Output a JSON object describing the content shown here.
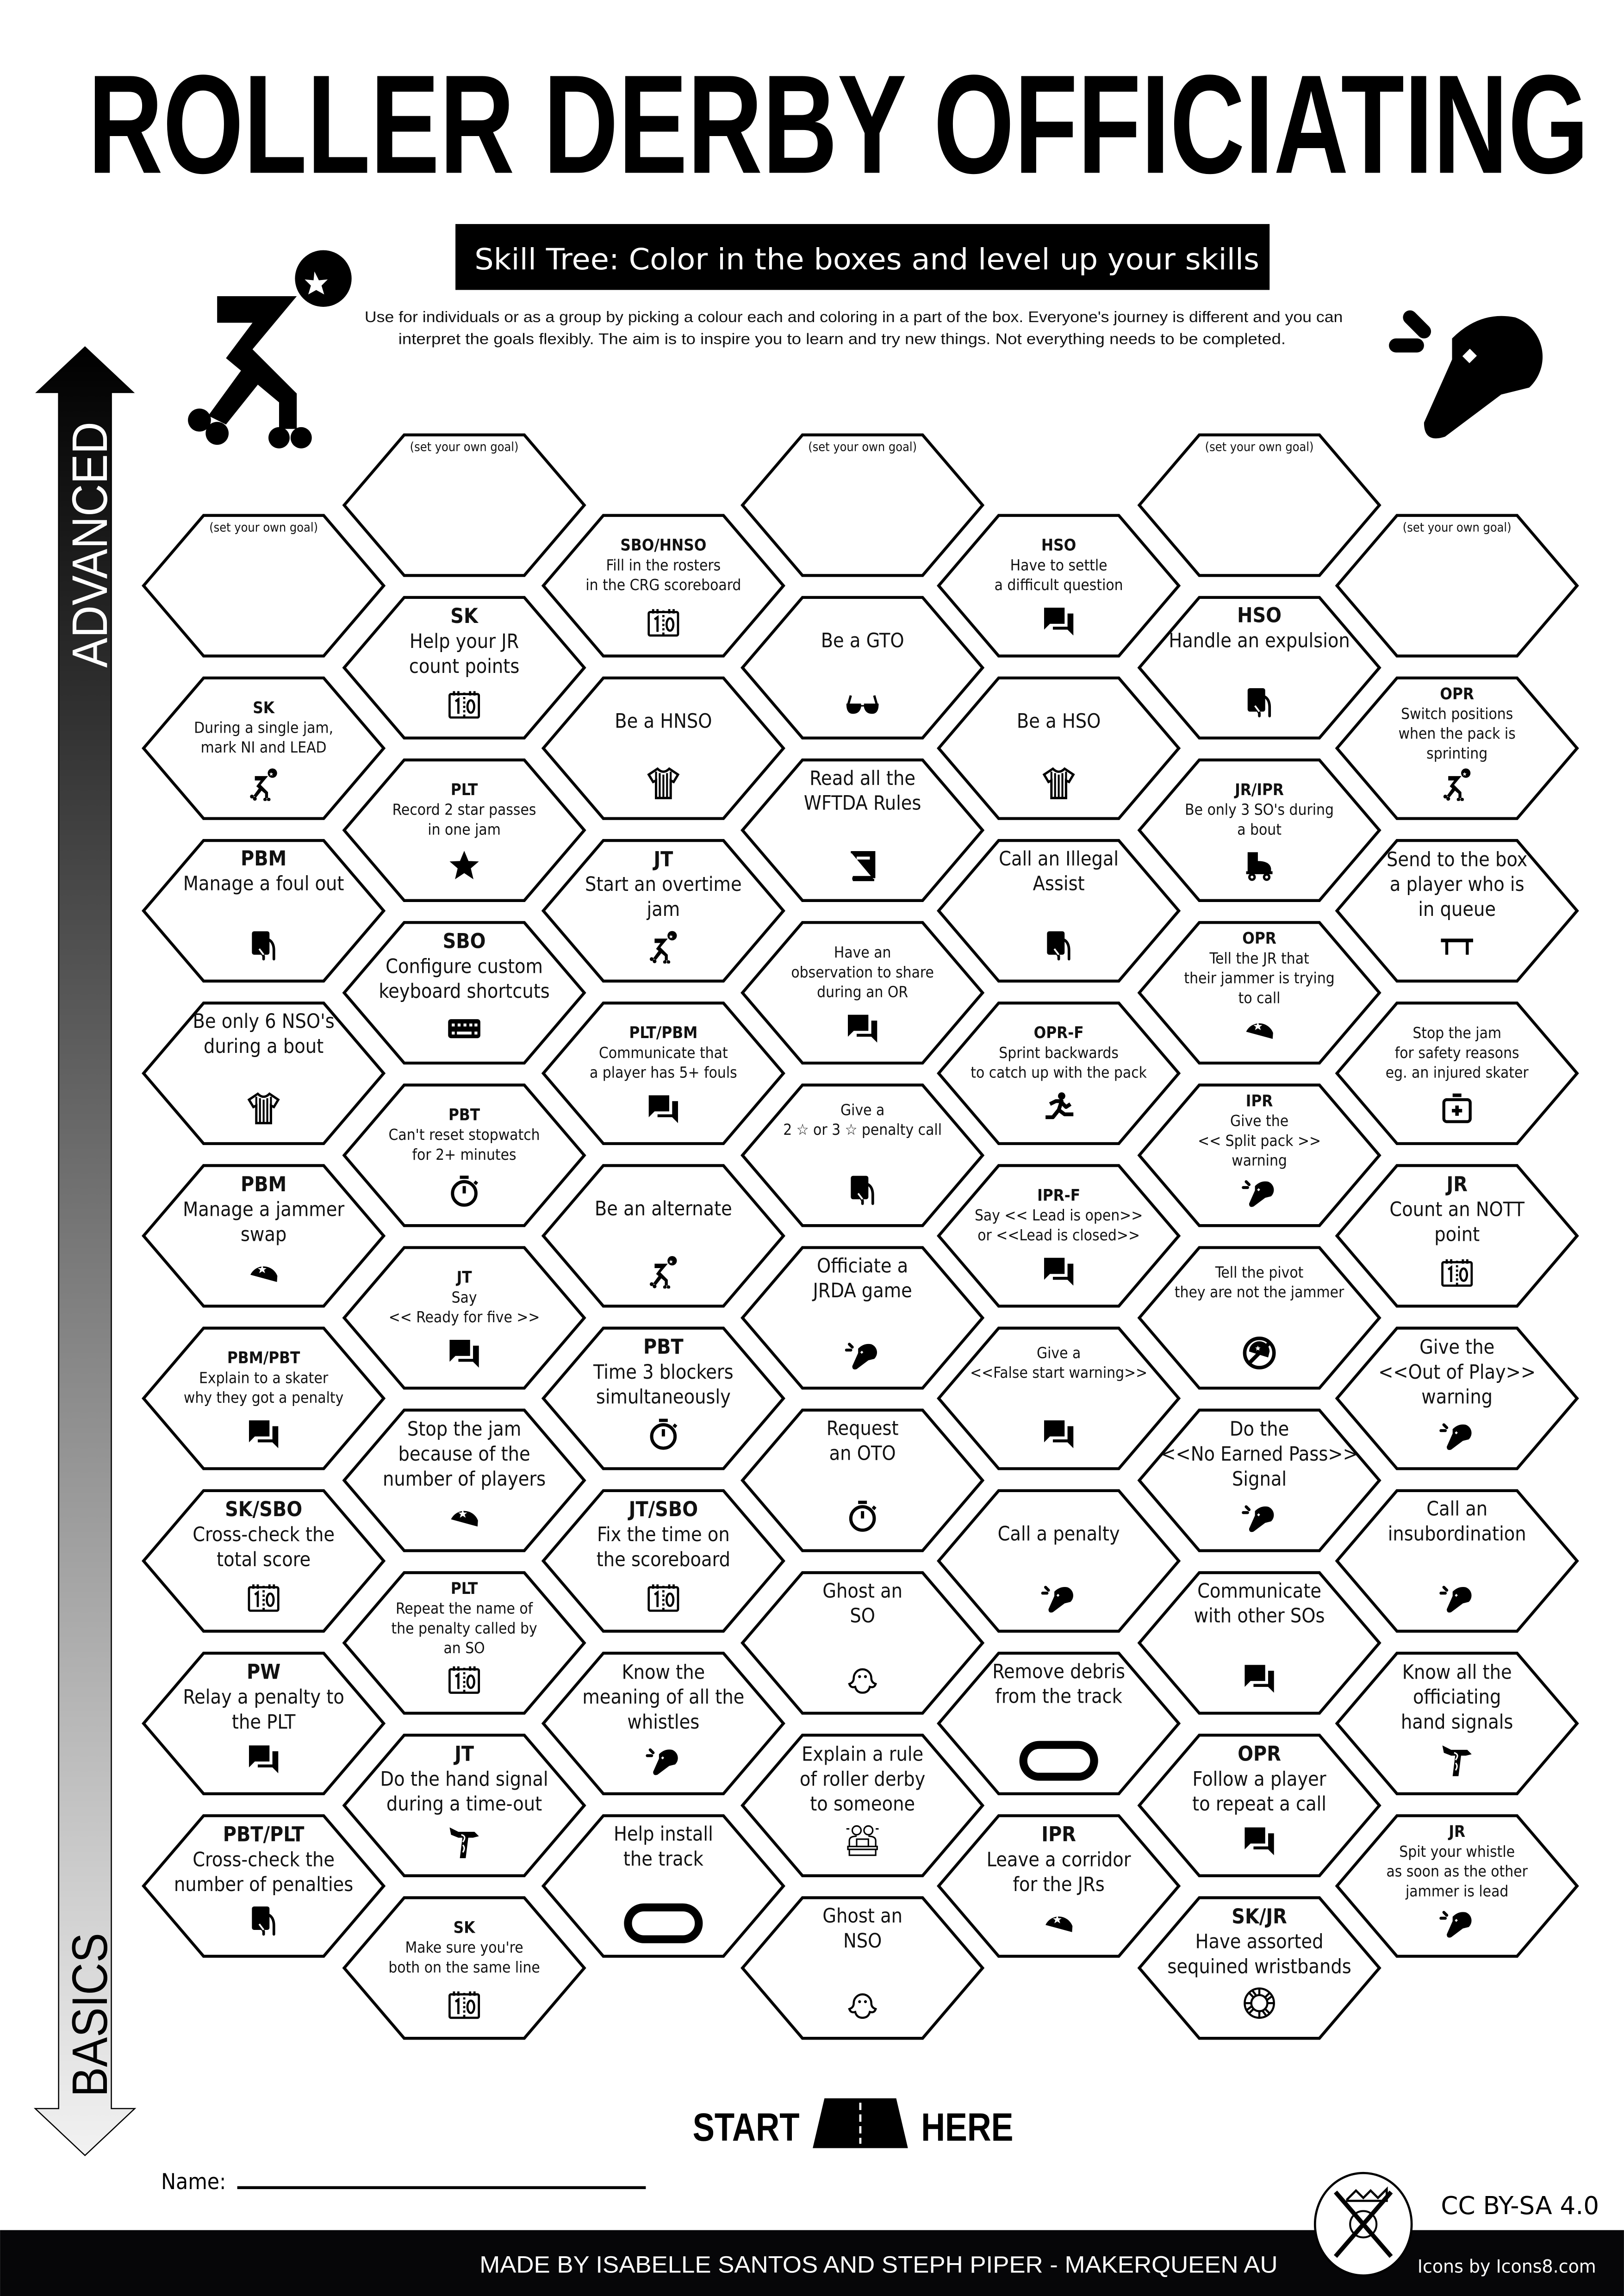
{
  "header": {
    "title": "ROLLER DERBY OFFICIATING",
    "subtitle": "Skill Tree:  Color in the boxes and level up your skills",
    "description": [
      "Use for individuals or as a group by picking a colour each and coloring in a part of the box.  Everyone's journey is different and you can",
      "interpret the goals flexibly.  The aim is to inspire you to learn and try new things. Not everything needs to be completed."
    ]
  },
  "axis": {
    "top_label": "ADVANCED",
    "bottom_label": "BASICS"
  },
  "goal_placeholder": "(set your own goal)",
  "columns": [
    {
      "hexes": [
        {
          "goal": true
        },
        {
          "code": "SK",
          "lines": [
            "During a single jam,",
            "mark NI and LEAD"
          ],
          "icon": "skater"
        },
        {
          "code": "PBM",
          "lines": [
            "Manage a foul out"
          ],
          "icon": "card"
        },
        {
          "code": "",
          "lines": [
            "Be only 6 NSO's",
            "during a bout"
          ],
          "icon": "jersey"
        },
        {
          "code": "PBM",
          "lines": [
            "Manage a jammer",
            "swap"
          ],
          "icon": "helmet"
        },
        {
          "code": "PBM/PBT",
          "lines": [
            "Explain to a skater",
            "why they got a penalty"
          ],
          "icon": "chat"
        },
        {
          "code": "SK/SBO",
          "lines": [
            "Cross-check the",
            "total score"
          ],
          "icon": "scoreboard"
        },
        {
          "code": "PW",
          "lines": [
            "Relay a penalty to",
            "the PLT"
          ],
          "icon": "chat"
        },
        {
          "code": "PBT/PLT",
          "lines": [
            "Cross-check the",
            "number of penalties"
          ],
          "icon": "card"
        }
      ]
    },
    {
      "hexes": [
        {
          "goal": true
        },
        {
          "code": "SK",
          "lines": [
            "Help your JR",
            "count points"
          ],
          "icon": "scoreboard"
        },
        {
          "code": "PLT",
          "lines": [
            "Record 2 star passes",
            "in one jam"
          ],
          "icon": "star"
        },
        {
          "code": "SBO",
          "lines": [
            "Configure custom",
            "keyboard shortcuts"
          ],
          "icon": "keyboard"
        },
        {
          "code": "PBT",
          "lines": [
            "Can't reset stopwatch",
            "for 2+ minutes"
          ],
          "icon": "stopwatch"
        },
        {
          "code": "JT",
          "lines": [
            "Say",
            "<< Ready for five >>"
          ],
          "icon": "chat"
        },
        {
          "code": "",
          "lines": [
            "Stop the jam",
            "because of the",
            "number of players"
          ],
          "icon": "helmet"
        },
        {
          "code": "PLT",
          "lines": [
            "Repeat the name of",
            "the penalty called by",
            "an SO"
          ],
          "icon": "scoreboard"
        },
        {
          "code": "JT",
          "lines": [
            "Do the hand signal",
            "during a time-out"
          ],
          "icon": "hand-signal"
        },
        {
          "code": "SK",
          "lines": [
            "Make sure you're",
            "both on the same line"
          ],
          "icon": "scoreboard"
        }
      ]
    },
    {
      "hexes": [
        {
          "code": "SBO/HNSO",
          "lines": [
            "Fill in the rosters",
            "in the CRG scoreboard"
          ],
          "icon": "scoreboard"
        },
        {
          "code": "",
          "lines": [
            "Be a HNSO"
          ],
          "icon": "jersey"
        },
        {
          "code": "JT",
          "lines": [
            "Start an overtime",
            "jam"
          ],
          "icon": "skater"
        },
        {
          "code": "PLT/PBM",
          "lines": [
            "Communicate that",
            "a player has 5+ fouls"
          ],
          "icon": "chat"
        },
        {
          "code": "",
          "lines": [
            "Be an alternate"
          ],
          "icon": "skater"
        },
        {
          "code": "PBT",
          "lines": [
            "Time 3 blockers",
            "simultaneously"
          ],
          "icon": "stopwatch"
        },
        {
          "code": "JT/SBO",
          "lines": [
            "Fix the time on",
            "the scoreboard"
          ],
          "icon": "scoreboard"
        },
        {
          "code": "",
          "lines": [
            "Know the",
            "meaning of all the",
            "whistles"
          ],
          "icon": "whistle"
        },
        {
          "code": "",
          "lines": [
            "Help install",
            "the track"
          ],
          "icon": "track"
        }
      ]
    },
    {
      "hexes": [
        {
          "goal": true
        },
        {
          "code": "",
          "lines": [
            "Be a GTO"
          ],
          "icon": "sunglasses"
        },
        {
          "code": "",
          "lines": [
            "Read all the",
            "WFTDA Rules"
          ],
          "icon": "book"
        },
        {
          "code": "",
          "lines": [
            "Have an",
            "observation to share",
            "during an OR"
          ],
          "icon": "chat"
        },
        {
          "code": "",
          "lines": [
            "Give a",
            "2 ☆ or 3 ☆ penalty call"
          ],
          "icon": "card"
        },
        {
          "code": "",
          "lines": [
            "Officiate a",
            "JRDA game"
          ],
          "icon": "whistle"
        },
        {
          "code": "",
          "lines": [
            "Request",
            "an OTO"
          ],
          "icon": "stopwatch"
        },
        {
          "code": "",
          "lines": [
            "Ghost an",
            "SO"
          ],
          "icon": "ghost"
        },
        {
          "code": "",
          "lines": [
            "Explain a rule",
            "of roller derby",
            "to someone"
          ],
          "icon": "presenters"
        },
        {
          "code": "",
          "lines": [
            "Ghost an",
            "NSO"
          ],
          "icon": "ghost"
        }
      ]
    },
    {
      "hexes": [
        {
          "code": "HSO",
          "lines": [
            "Have to settle",
            "a difficult question"
          ],
          "icon": "chat"
        },
        {
          "code": "",
          "lines": [
            "Be a HSO"
          ],
          "icon": "jersey"
        },
        {
          "code": "",
          "lines": [
            "Call an Illegal",
            "Assist"
          ],
          "icon": "card"
        },
        {
          "code": "OPR-F",
          "lines": [
            "Sprint backwards",
            "to catch up with the pack"
          ],
          "icon": "runner"
        },
        {
          "code": "IPR-F",
          "lines": [
            "Say << Lead is open>>",
            "or <<Lead is closed>>"
          ],
          "icon": "chat"
        },
        {
          "code": "",
          "lines": [
            "Give a",
            "<<False start warning>>"
          ],
          "icon": "chat"
        },
        {
          "code": "",
          "lines": [
            "Call a penalty"
          ],
          "icon": "whistle"
        },
        {
          "code": "",
          "lines": [
            "Remove debris",
            "from the track"
          ],
          "icon": "track"
        },
        {
          "code": "IPR",
          "lines": [
            "Leave a corridor",
            "for the JRs"
          ],
          "icon": "helmet"
        }
      ]
    },
    {
      "hexes": [
        {
          "goal": true
        },
        {
          "code": "HSO",
          "lines": [
            "Handle an expulsion"
          ],
          "icon": "card"
        },
        {
          "code": "JR/IPR",
          "lines": [
            "Be only 3 SO's during",
            "a bout"
          ],
          "icon": "roller-skate"
        },
        {
          "code": "OPR",
          "lines": [
            "Tell the JR that",
            "their jammer is trying",
            "to call"
          ],
          "icon": "helmet"
        },
        {
          "code": "IPR",
          "lines": [
            "Give the",
            "<< Split pack >>",
            "warning"
          ],
          "icon": "whistle"
        },
        {
          "code": "",
          "lines": [
            "Tell the pivot",
            "they are not the jammer"
          ],
          "icon": "no-jammer"
        },
        {
          "code": "",
          "lines": [
            "Do the",
            "<<No Earned Pass>>",
            "Signal"
          ],
          "icon": "whistle"
        },
        {
          "code": "",
          "lines": [
            "Communicate",
            "with other SOs"
          ],
          "icon": "chat"
        },
        {
          "code": "OPR",
          "lines": [
            "Follow a player",
            "to repeat a call"
          ],
          "icon": "chat"
        },
        {
          "code": "SK/JR",
          "lines": [
            "Have assorted",
            "sequined wristbands"
          ],
          "icon": "wristband"
        }
      ]
    },
    {
      "hexes": [
        {
          "goal": true
        },
        {
          "code": "OPR",
          "lines": [
            "Switch positions",
            "when the pack is",
            "sprinting"
          ],
          "icon": "skater"
        },
        {
          "code": "",
          "lines": [
            "Send to the box",
            "a player who is",
            "in queue"
          ],
          "icon": "bench"
        },
        {
          "code": "",
          "lines": [
            "Stop the jam",
            "for safety reasons",
            "eg. an injured skater"
          ],
          "icon": "first-aid"
        },
        {
          "code": "JR",
          "lines": [
            "Count an NOTT",
            "point"
          ],
          "icon": "scoreboard"
        },
        {
          "code": "",
          "lines": [
            "Give the",
            "<<Out of Play>>",
            "warning"
          ],
          "icon": "whistle"
        },
        {
          "code": "",
          "lines": [
            "Call an",
            "insubordination"
          ],
          "icon": "whistle"
        },
        {
          "code": "",
          "lines": [
            "Know all the",
            "officiating",
            "hand signals"
          ],
          "icon": "hand-signal"
        },
        {
          "code": "JR",
          "lines": [
            "Spit your whistle",
            "as soon as the other",
            "jammer is lead"
          ],
          "icon": "whistle"
        }
      ]
    }
  ],
  "start": {
    "left": "START",
    "right": "HERE"
  },
  "name_label": "Name:",
  "license": "CC BY-SA 4.0",
  "icons_credit": "Icons by Icons8.com",
  "footer": "MADE BY ISABELLE SANTOS AND STEPH PIPER  -  MAKERQUEEN AU",
  "colors": {
    "ink": "#000000",
    "paper": "#ffffff",
    "footer_bg": "#060608"
  }
}
